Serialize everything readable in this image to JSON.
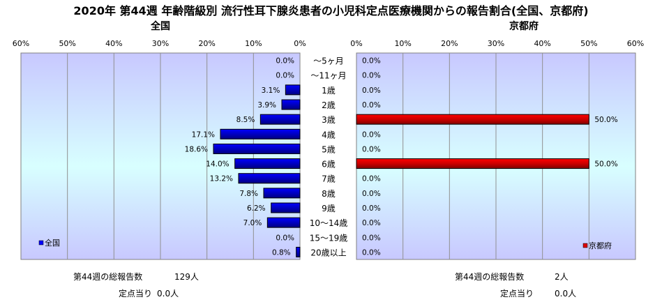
{
  "title": "2020年 第44週 年齢階級別 流行性耳下腺炎患者の小児科定点医療機関からの報告割合(全国、京都府)",
  "chart_data": [
    {
      "type": "bar",
      "orientation": "horizontal",
      "direction": "right-to-left",
      "title": "全国",
      "legend": "全国",
      "legend_position": "bottom-left",
      "color": "#0000ff",
      "xlim": [
        0,
        60
      ],
      "xticks": [
        "60%",
        "50%",
        "40%",
        "30%",
        "20%",
        "10%",
        "0%"
      ],
      "categories": [
        "～5ヶ月",
        "～11ヶ月",
        "1歳",
        "2歳",
        "3歳",
        "4歳",
        "5歳",
        "6歳",
        "7歳",
        "8歳",
        "9歳",
        "10～14歳",
        "15～19歳",
        "20歳以上"
      ],
      "values": [
        0.0,
        0.0,
        3.1,
        3.9,
        8.5,
        17.1,
        18.6,
        14.0,
        13.2,
        7.8,
        6.2,
        7.0,
        0.0,
        0.8
      ],
      "labels": [
        "0.0%",
        "0.0%",
        "3.1%",
        "3.9%",
        "8.5%",
        "17.1%",
        "18.6%",
        "14.0%",
        "13.2%",
        "7.8%",
        "6.2%",
        "7.0%",
        "0.0%",
        "0.8%"
      ],
      "grid": true
    },
    {
      "type": "bar",
      "orientation": "horizontal",
      "direction": "left-to-right",
      "title": "京都府",
      "legend": "京都府",
      "legend_position": "bottom-right",
      "color": "#dd0000",
      "xlim": [
        0,
        60
      ],
      "xticks": [
        "0%",
        "10%",
        "20%",
        "30%",
        "40%",
        "50%",
        "60%"
      ],
      "values": [
        0.0,
        0.0,
        0.0,
        0.0,
        50.0,
        0.0,
        0.0,
        50.0,
        0.0,
        0.0,
        0.0,
        0.0,
        0.0,
        0.0
      ],
      "labels": [
        "0.0%",
        "0.0%",
        "0.0%",
        "0.0%",
        "50.0%",
        "0.0%",
        "0.0%",
        "50.0%",
        "0.0%",
        "0.0%",
        "0.0%",
        "0.0%",
        "0.0%",
        "0.0%"
      ],
      "grid": true
    }
  ],
  "footer": {
    "national_total_label": "第44週の総報告数",
    "national_total_value": "129人",
    "national_per_label": "定点当り",
    "national_per_value": "0.0人",
    "kyoto_total_label": "第44週の総報告数",
    "kyoto_total_value": "2人",
    "kyoto_per_label": "定点当り",
    "kyoto_per_value": "0.0人"
  }
}
